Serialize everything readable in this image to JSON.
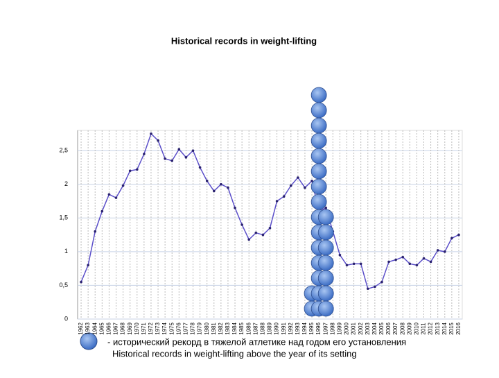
{
  "chart_data": {
    "type": "line",
    "title": "Historical records in weight-lifting",
    "categories": [
      "1962",
      "1963",
      "1964",
      "1965",
      "1966",
      "1967",
      "1968",
      "1969",
      "1970",
      "1971",
      "1972",
      "1973",
      "1974",
      "1975",
      "1976",
      "1977",
      "1978",
      "1979",
      "1980",
      "1981",
      "1982",
      "1983",
      "1984",
      "1985",
      "1986",
      "1987",
      "1988",
      "1989",
      "1990",
      "1991",
      "1992",
      "1993",
      "1994",
      "1995",
      "1996",
      "1997",
      "1998",
      "1999",
      "2000",
      "2001",
      "2002",
      "2003",
      "2004",
      "2005",
      "2006",
      "2007",
      "2008",
      "2009",
      "2010",
      "2011",
      "2012",
      "2013",
      "2014",
      "2015",
      "2016"
    ],
    "series": [
      {
        "color": "#5b4fc9",
        "values": [
          0.55,
          0.8,
          1.3,
          1.6,
          1.85,
          1.8,
          1.98,
          2.2,
          2.22,
          2.45,
          2.75,
          2.65,
          2.38,
          2.35,
          2.52,
          2.4,
          2.5,
          2.25,
          2.05,
          1.9,
          2.0,
          1.95,
          1.65,
          1.4,
          1.18,
          1.28,
          1.25,
          1.35,
          1.75,
          1.82,
          1.98,
          2.1,
          1.95,
          2.05,
          1.6,
          1.65,
          1.3,
          0.95,
          0.8,
          0.82,
          0.82,
          0.45,
          0.48,
          0.55,
          0.85,
          0.88,
          0.92,
          0.82,
          0.8,
          0.9,
          0.85,
          1.02,
          1.0,
          1.2,
          1.25
        ]
      }
    ],
    "record_stacks": [
      {
        "year": "1995",
        "count": 2
      },
      {
        "year": "1996",
        "count": 15
      },
      {
        "year": "1997",
        "count": 7
      }
    ],
    "marker_color": "#4f82d8",
    "ylim": [
      0,
      2.8
    ],
    "yticks": [
      0,
      {
        "value": 0.5,
        "label": "0,5"
      },
      1,
      {
        "value": 1.5,
        "label": "1,5"
      },
      2,
      {
        "value": 2.5,
        "label": "2,5"
      }
    ],
    "grid": true,
    "legend": [
      "- исторический рекорд в тяжелой атлетике над годом его установления",
      "Historical records in weight-lifting above the year of its setting"
    ]
  }
}
